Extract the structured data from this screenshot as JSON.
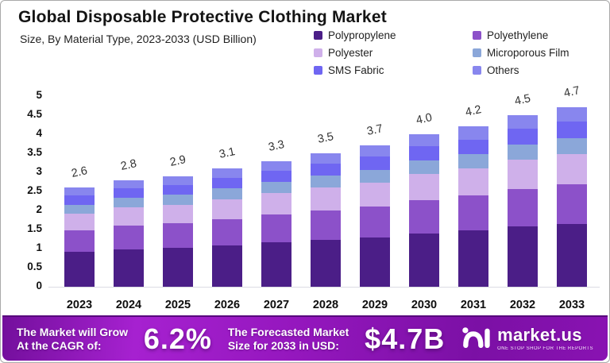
{
  "header": {
    "title": "Global Disposable Protective Clothing Market",
    "subtitle": "Size, By Material Type, 2023-2033 (USD Billion)"
  },
  "chart_data": {
    "type": "bar",
    "stacked": true,
    "title": "Global Disposable Protective Clothing Market",
    "subtitle": "Size, By Material Type, 2023-2033 (USD Billion)",
    "unit": "USD Billion",
    "categories": [
      "2023",
      "2024",
      "2025",
      "2026",
      "2027",
      "2028",
      "2029",
      "2030",
      "2031",
      "2032",
      "2033"
    ],
    "totals": [
      2.6,
      2.8,
      2.9,
      3.1,
      3.3,
      3.5,
      3.7,
      4.0,
      4.2,
      4.5,
      4.7
    ],
    "total_labels": [
      "2.6",
      "2.8",
      "2.9",
      "3.1",
      "3.3",
      "3.5",
      "3.7",
      "4.0",
      "4.2",
      "4.5",
      "4.7"
    ],
    "series": [
      {
        "name": "Polypropylene",
        "color": "#4b1e87",
        "values": [
          0.91,
          0.98,
          1.02,
          1.09,
          1.16,
          1.23,
          1.3,
          1.4,
          1.47,
          1.58,
          1.65
        ]
      },
      {
        "name": "Polyethylene",
        "color": "#8c51c9",
        "values": [
          0.57,
          0.62,
          0.64,
          0.68,
          0.73,
          0.77,
          0.81,
          0.88,
          0.92,
          0.99,
          1.03
        ]
      },
      {
        "name": "Polyester",
        "color": "#cfb0ea",
        "values": [
          0.44,
          0.48,
          0.49,
          0.53,
          0.56,
          0.6,
          0.63,
          0.68,
          0.71,
          0.77,
          0.8
        ]
      },
      {
        "name": "Microporous Film",
        "color": "#8ba7d9",
        "values": [
          0.23,
          0.25,
          0.26,
          0.28,
          0.3,
          0.31,
          0.33,
          0.36,
          0.38,
          0.4,
          0.42
        ]
      },
      {
        "name": "SMS Fabric",
        "color": "#6f66f2",
        "values": [
          0.24,
          0.25,
          0.26,
          0.28,
          0.3,
          0.32,
          0.34,
          0.36,
          0.38,
          0.41,
          0.43
        ]
      },
      {
        "name": "Others",
        "color": "#8886ee",
        "values": [
          0.21,
          0.22,
          0.23,
          0.24,
          0.25,
          0.27,
          0.29,
          0.32,
          0.34,
          0.35,
          0.37
        ]
      }
    ],
    "ylim": [
      0,
      5
    ],
    "yticks": [
      "0",
      "0.5",
      "1",
      "1.5",
      "2",
      "2.5",
      "3",
      "3.5",
      "4",
      "4.5",
      "5"
    ],
    "grid": false,
    "legend_position": "top-right"
  },
  "footer": {
    "cagr_label_line1": "The Market will Grow",
    "cagr_label_line2": "At the CAGR of:",
    "cagr_value": "6.2%",
    "forecast_label_line1": "The Forecasted Market",
    "forecast_label_line2": "Size for 2033 in USD:",
    "forecast_value": "$4.7B",
    "brand_name": "market.us",
    "brand_tagline": "ONE STOP SHOP FOR THE REPORTS",
    "accent_color": "#9b16c4"
  }
}
